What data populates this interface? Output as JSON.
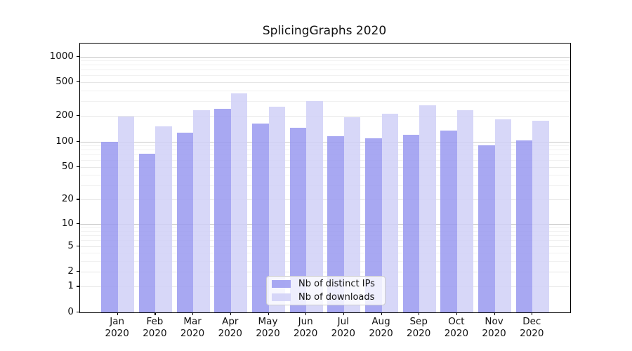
{
  "chart_data": {
    "type": "bar",
    "title": "SplicingGraphs 2020",
    "categories": [
      "Jan 2020",
      "Feb 2020",
      "Mar 2020",
      "Apr 2020",
      "May 2020",
      "Jun 2020",
      "Jul 2020",
      "Aug 2020",
      "Sep 2020",
      "Oct 2020",
      "Nov 2020",
      "Dec 2020"
    ],
    "x_tick_labels": [
      [
        "Jan",
        "2020"
      ],
      [
        "Feb",
        "2020"
      ],
      [
        "Mar",
        "2020"
      ],
      [
        "Apr",
        "2020"
      ],
      [
        "May",
        "2020"
      ],
      [
        "Jun",
        "2020"
      ],
      [
        "Jul",
        "2020"
      ],
      [
        "Aug",
        "2020"
      ],
      [
        "Sep",
        "2020"
      ],
      [
        "Oct",
        "2020"
      ],
      [
        "Nov",
        "2020"
      ],
      [
        "Dec",
        "2020"
      ]
    ],
    "series": [
      {
        "name": "Nb of distinct IPs",
        "color": "#9999f0",
        "alpha": 0.85,
        "values": [
          100,
          71,
          128,
          245,
          163,
          145,
          116,
          110,
          120,
          135,
          90,
          103
        ]
      },
      {
        "name": "Nb of downloads",
        "color": "#d0d0f7",
        "alpha": 0.85,
        "values": [
          197,
          152,
          236,
          367,
          255,
          298,
          194,
          214,
          265,
          233,
          183,
          177
        ]
      }
    ],
    "y_axis": {
      "scale": "log1p",
      "tick_values": [
        0,
        1,
        2,
        5,
        10,
        20,
        50,
        100,
        200,
        500,
        1000
      ],
      "tick_labels": [
        "0",
        "1",
        "2",
        "5",
        "10",
        "20",
        "50",
        "100",
        "200",
        "500",
        "1000"
      ],
      "minor_tick_values": [
        3,
        4,
        6,
        7,
        8,
        9,
        30,
        40,
        60,
        70,
        80,
        90,
        300,
        400,
        600,
        700,
        800,
        900
      ],
      "decade_values": [
        10,
        100,
        1000
      ],
      "ylim": [
        0,
        1420
      ]
    },
    "grid": "on",
    "legend_position": "lower center",
    "styles": {
      "decade_grid_color": "#c8c8c8",
      "major_grid_color": "#e6e6e6",
      "minor_grid_color": "#f1f1f1",
      "spine_color": "#000000",
      "legend_border_color": "#cccccc"
    }
  }
}
